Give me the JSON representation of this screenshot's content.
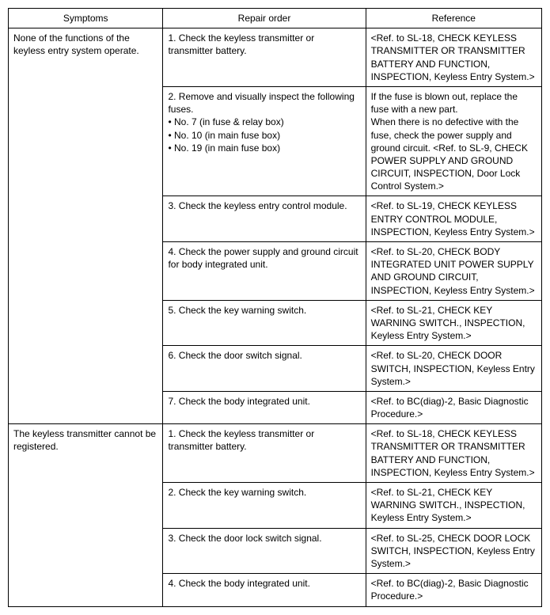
{
  "headers": {
    "symptoms": "Symptoms",
    "repair": "Repair order",
    "reference": "Reference"
  },
  "group1": {
    "symptom": "None of the functions of the keyless entry system operate.",
    "rows": [
      {
        "repair": "1. Check the keyless transmitter or transmitter battery.",
        "reference": "<Ref. to SL-18, CHECK KEYLESS TRANSMITTER OR TRANSMITTER BATTERY AND FUNCTION, INSPECTION, Keyless Entry System.>"
      },
      {
        "repair_intro": "2. Remove and visually inspect the following fuses.",
        "repair_bullets": [
          "No. 7 (in fuse & relay box)",
          "No. 10 (in main fuse box)",
          "No. 19 (in main fuse box)"
        ],
        "reference": "If the fuse is blown out, replace the fuse with a new part.\nWhen there is no defective with the fuse, check the power supply and ground circuit. <Ref. to SL-9, CHECK POWER SUPPLY AND GROUND CIRCUIT, INSPECTION, Door Lock Control System.>"
      },
      {
        "repair": "3. Check the keyless entry control module.",
        "reference": "<Ref. to SL-19, CHECK KEYLESS ENTRY CONTROL MODULE, INSPECTION, Keyless Entry System.>"
      },
      {
        "repair": "4. Check the power supply and ground circuit for body integrated unit.",
        "reference": "<Ref. to SL-20, CHECK BODY INTEGRATED UNIT POWER SUPPLY AND GROUND CIRCUIT, INSPECTION, Keyless Entry System.>"
      },
      {
        "repair": "5. Check the key warning switch.",
        "reference": "<Ref. to SL-21, CHECK KEY WARNING SWITCH., INSPECTION, Keyless Entry System.>"
      },
      {
        "repair": "6. Check the door switch signal.",
        "reference": "<Ref. to SL-20, CHECK DOOR SWITCH, INSPECTION, Keyless Entry System.>"
      },
      {
        "repair": "7. Check the body integrated unit.",
        "reference": "<Ref. to BC(diag)-2, Basic Diagnostic Procedure.>"
      }
    ]
  },
  "group2": {
    "symptom": "The keyless transmitter cannot be registered.",
    "rows": [
      {
        "repair": "1. Check the keyless transmitter or transmitter battery.",
        "reference": "<Ref. to SL-18, CHECK KEYLESS TRANSMITTER OR TRANSMITTER BATTERY AND FUNCTION, INSPECTION, Keyless Entry System.>"
      },
      {
        "repair": "2. Check the key warning switch.",
        "reference": "<Ref. to SL-21, CHECK KEY WARNING SWITCH., INSPECTION, Keyless Entry System.>"
      },
      {
        "repair": "3. Check the door lock switch signal.",
        "reference": "<Ref. to SL-25, CHECK DOOR LOCK SWITCH, INSPECTION, Keyless Entry System.>"
      },
      {
        "repair": "4. Check the body integrated unit.",
        "reference": "<Ref. to BC(diag)-2, Basic Diagnostic Procedure.>"
      }
    ]
  }
}
